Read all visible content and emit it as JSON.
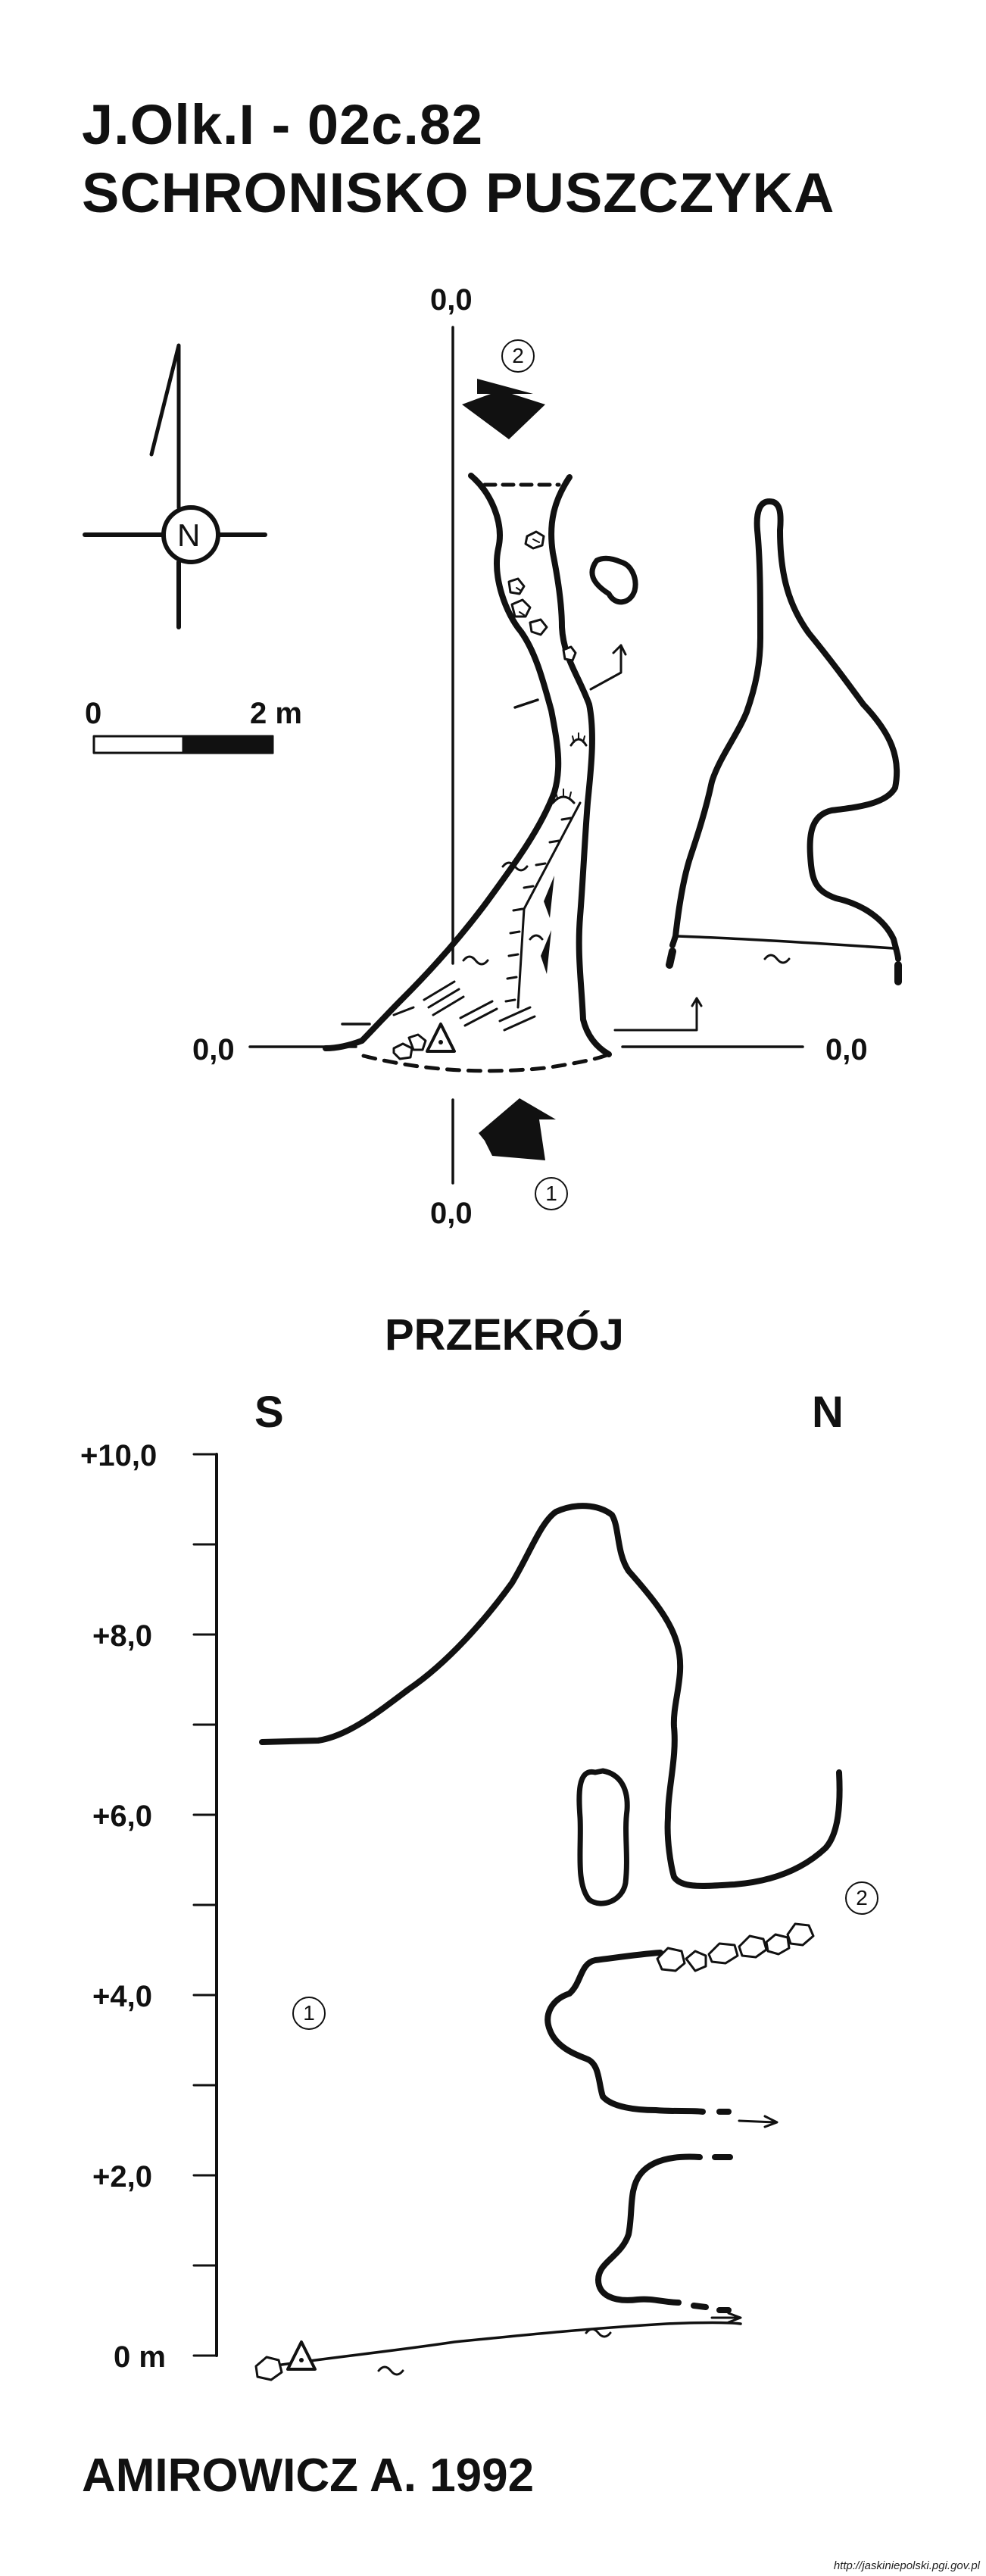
{
  "title": {
    "line1": "J.Olk.I - 02c.82",
    "line2": "SCHRONISKO PUSZCZYKA"
  },
  "compass": {
    "label": "N"
  },
  "scale_bar": {
    "start_label": "0",
    "end_label": "2 m"
  },
  "plan": {
    "zero_top": "0,0",
    "zero_left": "0,0",
    "zero_right": "0,0",
    "zero_bottom": "0,0",
    "entrance_1": "1",
    "entrance_2": "2"
  },
  "section": {
    "title": "PRZEKRÓJ",
    "left_dir": "S",
    "right_dir": "N",
    "axis_labels": [
      "+10,0",
      "+8,0",
      "+6,0",
      "+4,0",
      "+2,0",
      "0 m"
    ],
    "entrance_1": "1",
    "entrance_2": "2"
  },
  "author": "AMIROWICZ A. 1992",
  "credit": "http://jaskiniepolski.pgi.gov.pl"
}
